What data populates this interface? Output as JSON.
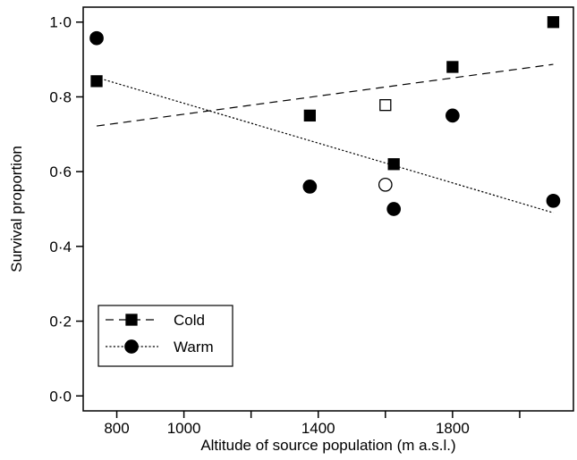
{
  "chart_data": {
    "type": "scatter",
    "title": "",
    "xlabel": "Altitude of source population (m a.s.l.)",
    "ylabel": "Survival proportion",
    "xlim": [
      700,
      2160
    ],
    "ylim": [
      -0.04,
      1.04
    ],
    "x_ticks": [
      {
        "value": 800,
        "label": "800"
      },
      {
        "value": 1000,
        "label": "1000"
      },
      {
        "value": 1200,
        "label": ""
      },
      {
        "value": 1400,
        "label": "1400"
      },
      {
        "value": 1600,
        "label": ""
      },
      {
        "value": 1800,
        "label": "1800"
      },
      {
        "value": 2000,
        "label": ""
      }
    ],
    "y_ticks": [
      {
        "value": 0.0,
        "label": "0·0"
      },
      {
        "value": 0.2,
        "label": "0·2"
      },
      {
        "value": 0.4,
        "label": "0·4"
      },
      {
        "value": 0.6,
        "label": "0·6"
      },
      {
        "value": 0.8,
        "label": "0·8"
      },
      {
        "value": 1.0,
        "label": "1·0"
      }
    ],
    "grid": false,
    "legend_position": "bottom-left",
    "series": [
      {
        "name": "Cold",
        "marker": "square",
        "line_style": "dashed",
        "points": [
          {
            "x": 740,
            "y": 0.842,
            "filled": true
          },
          {
            "x": 1375,
            "y": 0.75,
            "filled": true
          },
          {
            "x": 1600,
            "y": 0.778,
            "filled": false
          },
          {
            "x": 1625,
            "y": 0.62,
            "filled": true
          },
          {
            "x": 1800,
            "y": 0.88,
            "filled": true
          },
          {
            "x": 2100,
            "y": 1.0,
            "filled": true
          }
        ],
        "trend": [
          {
            "x": 740,
            "y": 0.722
          },
          {
            "x": 2100,
            "y": 0.887
          }
        ]
      },
      {
        "name": "Warm",
        "marker": "circle",
        "line_style": "dotted",
        "points": [
          {
            "x": 740,
            "y": 0.957,
            "filled": true
          },
          {
            "x": 1375,
            "y": 0.56,
            "filled": true
          },
          {
            "x": 1600,
            "y": 0.565,
            "filled": false
          },
          {
            "x": 1625,
            "y": 0.5,
            "filled": true
          },
          {
            "x": 1800,
            "y": 0.75,
            "filled": true
          },
          {
            "x": 2100,
            "y": 0.522,
            "filled": true
          }
        ],
        "trend": [
          {
            "x": 740,
            "y": 0.852
          },
          {
            "x": 2100,
            "y": 0.49
          }
        ]
      }
    ]
  }
}
